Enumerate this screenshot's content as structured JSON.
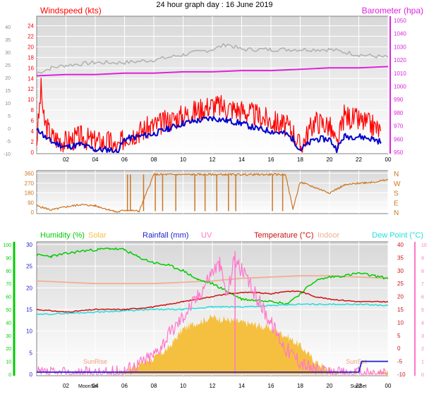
{
  "title": "24 hour graph day : 16 June 2019",
  "colors": {
    "wind": "#ff0000",
    "gust_avg": "#0000cc",
    "baro": "#dd22dd",
    "indoor_temp_gray": "#b0b0b0",
    "direction": "#cc7722",
    "humidity": "#00cc00",
    "solar": "#f5c040",
    "rain": "#2222cc",
    "uv": "#ff77cc",
    "temperature": "#cc1111",
    "indoor": "#f0b090",
    "dewpoint": "#22dddd",
    "sunrise": "#f0a080"
  },
  "chart_data": [
    {
      "type": "line",
      "title": "",
      "left_axis_label": "Windspeed (kts)",
      "right_axis_label": "Barometer (hpa)",
      "x_ticks": [
        "02",
        "04",
        "06",
        "08",
        "10",
        "12",
        "14",
        "16",
        "18",
        "20",
        "22",
        "00"
      ],
      "y_ticks_inner": [
        "24",
        "22",
        "20",
        "18",
        "16",
        "14",
        "12",
        "10",
        "8",
        "6",
        "4",
        "2",
        "0"
      ],
      "y_ticks_outer": [
        "40",
        "35",
        "30",
        "25",
        "20",
        "15",
        "10",
        "5",
        "0",
        "-5",
        "-10"
      ],
      "y_ticks_right": [
        "1050",
        "1040",
        "1030",
        "1020",
        "1010",
        "1000",
        "990",
        "980",
        "970",
        "960",
        "950"
      ],
      "ylim_inner": [
        0,
        25
      ],
      "ylim_right": [
        950,
        1050
      ],
      "grid": true,
      "series": [
        {
          "key": "gust",
          "x": [
            0,
            0.3,
            0.5,
            1,
            2,
            3,
            4,
            5,
            5.5,
            6,
            7,
            8,
            9,
            10,
            11,
            12,
            13,
            14,
            15,
            16,
            17,
            17.5,
            18,
            19,
            20,
            20.5,
            21,
            22,
            23,
            23.5
          ],
          "y": [
            2,
            12,
            6,
            3,
            2,
            3,
            2,
            2,
            0.5,
            3,
            4,
            5,
            6,
            7,
            8,
            9,
            8.5,
            8,
            7,
            6,
            5,
            4,
            1,
            6,
            5,
            1,
            7,
            6,
            5,
            4
          ]
        },
        {
          "key": "average",
          "x": [
            0,
            0.3,
            0.5,
            1,
            2,
            3,
            4,
            5,
            5.5,
            6,
            7,
            8,
            9,
            10,
            11,
            12,
            13,
            14,
            15,
            16,
            17,
            17.5,
            18,
            19,
            20,
            20.5,
            21,
            22,
            23,
            23.5
          ],
          "y": [
            4,
            4,
            3,
            2,
            1,
            1.5,
            0.5,
            0.5,
            0,
            2.5,
            3,
            3.5,
            4.5,
            5.5,
            6,
            6.5,
            6,
            5.5,
            4.5,
            4,
            3.5,
            2.5,
            0.5,
            2.5,
            2.5,
            0.5,
            3,
            3,
            2.5,
            2
          ]
        },
        {
          "key": "barometer",
          "x": [
            0,
            2,
            4,
            6,
            8,
            10,
            12,
            14,
            16,
            18,
            20,
            22,
            24
          ],
          "y": [
            1008,
            1009,
            1009,
            1010,
            1010,
            1011,
            1011,
            1012,
            1012,
            1013,
            1014,
            1014,
            1015
          ]
        },
        {
          "key": "indoor",
          "x": [
            0,
            1,
            2,
            4,
            6,
            8,
            10,
            12,
            13,
            14,
            16,
            18,
            20,
            22,
            24
          ],
          "y": [
            15,
            16,
            16.5,
            17,
            17,
            17.5,
            18.5,
            19.5,
            20.5,
            19.5,
            19.5,
            19.5,
            19.5,
            18.5,
            18
          ]
        }
      ]
    },
    {
      "type": "line",
      "title": "",
      "x_ticks": [
        "02",
        "04",
        "06",
        "08",
        "10",
        "12",
        "14",
        "16",
        "18",
        "20",
        "22",
        "00"
      ],
      "y_ticks": [
        "360",
        "270",
        "180",
        "90",
        "0"
      ],
      "right_labels": [
        "N",
        "W",
        "S",
        "E",
        "N"
      ],
      "ylim": [
        0,
        360
      ],
      "series": [
        {
          "key": "direction",
          "x": [
            0,
            1,
            2,
            3,
            4,
            5,
            5.5,
            6,
            7,
            8,
            9,
            10,
            11,
            12,
            13,
            14,
            15,
            16,
            17,
            17.5,
            18,
            19,
            20,
            21,
            22,
            23,
            24
          ],
          "y": [
            60,
            20,
            50,
            70,
            60,
            20,
            0,
            20,
            10,
            350,
            350,
            350,
            350,
            350,
            350,
            350,
            350,
            350,
            350,
            30,
            280,
            230,
            180,
            250,
            270,
            280,
            300
          ]
        }
      ]
    },
    {
      "type": "line",
      "title": "",
      "labels": [
        "Humidity (%)",
        "Solar",
        "Rainfall (mm)",
        "UV",
        "Temperature (°C)",
        "Indoor",
        "Dew Point (°C)"
      ],
      "x_ticks": [
        "02",
        "04",
        "06",
        "08",
        "10",
        "12",
        "14",
        "16",
        "18",
        "20",
        "22",
        "00"
      ],
      "y_ticks_humidity": [
        "100",
        "90",
        "80",
        "70",
        "60",
        "50",
        "40",
        "30",
        "20",
        "10",
        "0"
      ],
      "y_ticks_rain": [
        "30",
        "25",
        "20",
        "15",
        "10",
        "5",
        "0"
      ],
      "y_ticks_temp": [
        "40",
        "35",
        "30",
        "25",
        "20",
        "15",
        "10",
        "5",
        "0",
        "-5",
        "-10"
      ],
      "y_ticks_uv": [
        "10",
        "9",
        "8",
        "7",
        "6",
        "5",
        "4",
        "3",
        "2",
        "1",
        "0"
      ],
      "bottom_labels": [
        "SunRise",
        "SunSet",
        "MoonSet",
        "SunSet"
      ],
      "humidity": {
        "x": [
          0,
          1,
          2,
          3,
          4,
          5,
          6,
          7,
          8,
          9,
          10,
          11,
          12,
          13,
          14,
          15,
          16,
          17,
          18,
          19,
          20,
          21,
          22,
          23,
          24
        ],
        "y": [
          92,
          91,
          93,
          95,
          96,
          97,
          96,
          90,
          86,
          84,
          80,
          73,
          70,
          64,
          58,
          57,
          57,
          54,
          62,
          72,
          75,
          76,
          78,
          76,
          74
        ]
      },
      "solar": {
        "x": [
          5,
          6,
          7,
          8,
          9,
          10,
          11,
          12,
          13,
          14,
          15,
          16,
          17,
          18,
          19,
          20,
          21,
          22,
          23,
          24
        ],
        "y": [
          0,
          3,
          8,
          12,
          20,
          35,
          40,
          44,
          42,
          40,
          38,
          35,
          30,
          22,
          10,
          3,
          0,
          0,
          0,
          0
        ]
      },
      "rain": {
        "x": [
          0,
          22,
          22.2,
          24
        ],
        "y": [
          0.5,
          0.5,
          3,
          3
        ]
      },
      "uv": {
        "x": [
          0,
          5,
          6,
          7,
          8,
          9,
          10,
          11,
          12,
          12.5,
          13,
          13.5,
          14,
          15,
          16,
          17,
          18,
          19,
          20,
          24
        ],
        "y": [
          0,
          0,
          0.3,
          0.8,
          1.5,
          3,
          4.5,
          6,
          8,
          8.5,
          6,
          9,
          8,
          6,
          4,
          2,
          1,
          0.3,
          0,
          0
        ]
      },
      "temperature": {
        "x": [
          0,
          2,
          4,
          6,
          8,
          10,
          12,
          13,
          14,
          15,
          16,
          17,
          18,
          19,
          20,
          22,
          24
        ],
        "y": [
          15,
          14,
          15,
          15,
          16,
          18,
          20,
          21,
          21.5,
          21.5,
          21,
          22,
          22,
          20,
          19,
          18,
          18
        ]
      },
      "indoor": {
        "x": [
          0,
          2,
          4,
          6,
          8,
          10,
          12,
          14,
          16,
          18,
          20,
          22,
          24
        ],
        "y": [
          26,
          25.5,
          25,
          25,
          25,
          25.5,
          26,
          27,
          27.5,
          28,
          28,
          27.5,
          27
        ]
      },
      "dewpoint": {
        "x": [
          0,
          2,
          4,
          6,
          8,
          10,
          12,
          14,
          16,
          18,
          20,
          22,
          24
        ],
        "y": [
          13,
          13.5,
          14,
          14.5,
          15,
          15,
          16,
          16,
          16.5,
          17,
          17,
          17,
          16.5
        ]
      }
    }
  ]
}
